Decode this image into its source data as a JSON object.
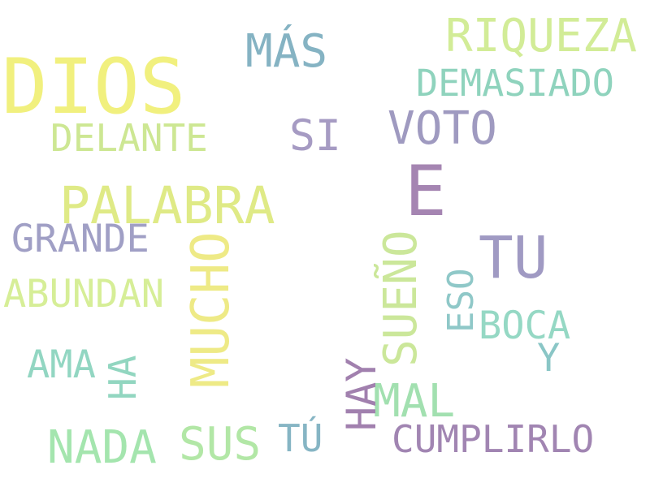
{
  "words": {
    "dios": {
      "text": "DIOS",
      "color": "#f1f07e"
    },
    "riqueza": {
      "text": "RIQUEZA",
      "color": "#d2ec97"
    },
    "mas": {
      "text": "MÁS",
      "color": "#85b3c3"
    },
    "demasiado": {
      "text": "DEMASIADO",
      "color": "#8fd3bd"
    },
    "delante": {
      "text": "DELANTE",
      "color": "#cde793"
    },
    "si": {
      "text": "SI",
      "color": "#a69bc3"
    },
    "voto": {
      "text": "VOTO",
      "color": "#9f9ac0"
    },
    "e": {
      "text": "E",
      "color": "#a585b2"
    },
    "palabra": {
      "text": "PALABRA",
      "color": "#dfea86"
    },
    "tu": {
      "text": "TU",
      "color": "#a09ac3"
    },
    "grande": {
      "text": "GRANDE",
      "color": "#a09fc5"
    },
    "mucho": {
      "text": "MUCHO",
      "color": "#eeea86"
    },
    "sueno": {
      "text": "SUEÑO",
      "color": "#cbe79a"
    },
    "eso": {
      "text": "ESO",
      "color": "#8fc8c8"
    },
    "abundan": {
      "text": "ABUNDAN",
      "color": "#d6ee97"
    },
    "boca": {
      "text": "BOCA",
      "color": "#95d8c4"
    },
    "ama": {
      "text": "AMA",
      "color": "#92d6c2"
    },
    "y": {
      "text": "Y",
      "color": "#8ac6c6"
    },
    "ha": {
      "text": "HA",
      "color": "#92d6c0"
    },
    "hay": {
      "text": "HAY",
      "color": "#a180ae"
    },
    "mal": {
      "text": "MAL",
      "color": "#a2e0b0"
    },
    "nada": {
      "text": "NADA",
      "color": "#a4e5ae"
    },
    "sus": {
      "text": "SUS",
      "color": "#b2e7a6"
    },
    "tu_acc": {
      "text": "TÚ",
      "color": "#86b5c4"
    },
    "cumplirlo": {
      "text": "CUMPLIRLO",
      "color": "#a185b2"
    }
  }
}
